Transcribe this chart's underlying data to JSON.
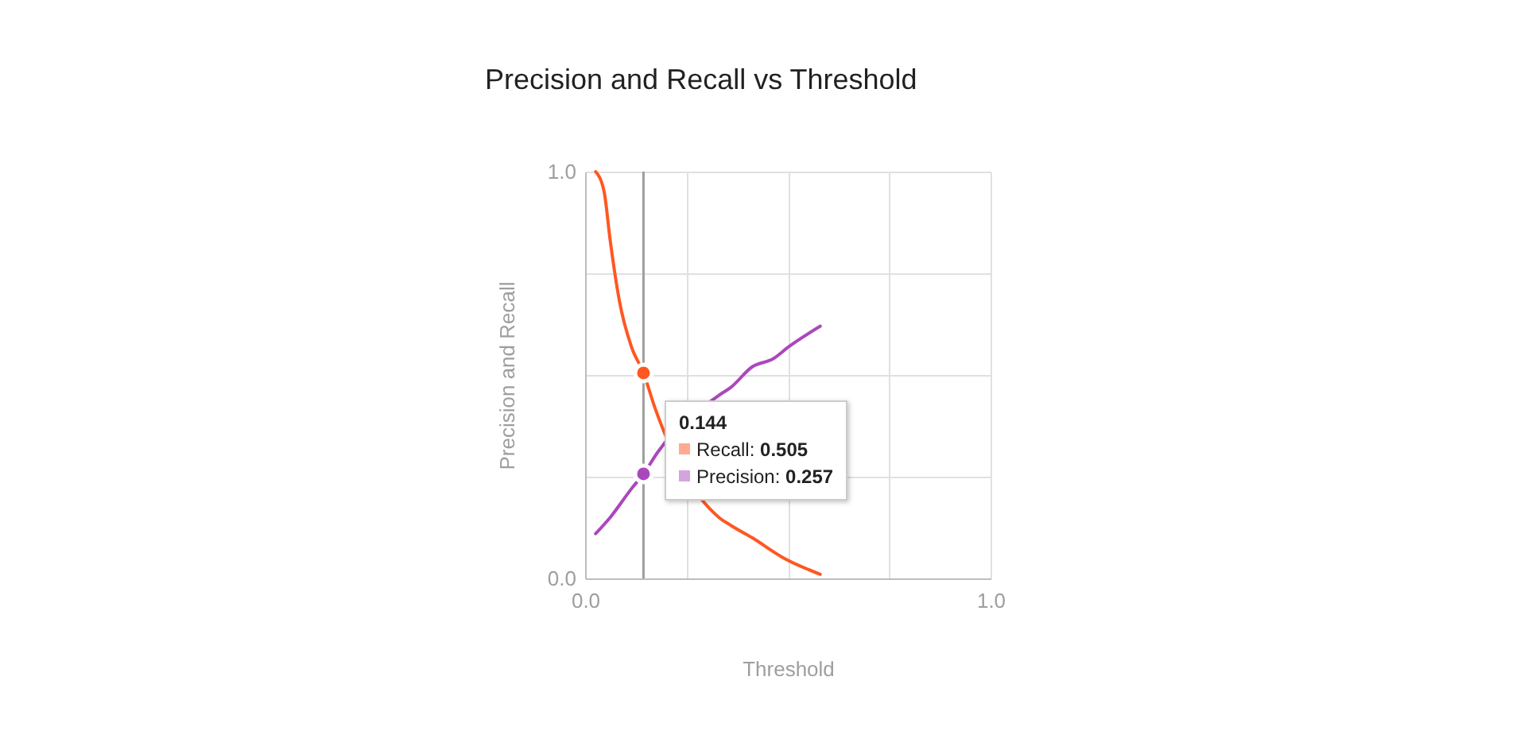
{
  "chart_data": {
    "type": "line",
    "title": "Precision and Recall vs Threshold",
    "xlabel": "Threshold",
    "ylabel": "Precision and Recall",
    "xlim": [
      0,
      1
    ],
    "ylim": [
      0,
      1
    ],
    "xticks": [
      {
        "value": 0,
        "label": "0.0"
      },
      {
        "value": 0.25,
        "label": null
      },
      {
        "value": 0.5,
        "label": null
      },
      {
        "value": 0.75,
        "label": null
      },
      {
        "value": 1,
        "label": "1.0"
      }
    ],
    "yticks": [
      {
        "value": 0,
        "label": "0.0"
      },
      {
        "value": 0.25,
        "label": null
      },
      {
        "value": 0.5,
        "label": null
      },
      {
        "value": 0.75,
        "label": null
      },
      {
        "value": 1,
        "label": "1.0"
      }
    ],
    "grid": true,
    "line_style": "solid",
    "series": [
      {
        "color": "#ff5722",
        "marker": "none",
        "x": [
          0.026,
          0.047,
          0.062,
          0.085,
          0.114,
          0.144,
          0.172,
          0.33,
          0.36,
          0.412,
          0.49,
          0.58
        ],
        "values": [
          1.0,
          0.95,
          0.83,
          0.68,
          0.57,
          0.505,
          0.42,
          0.15,
          0.13,
          0.1,
          0.05,
          0.01
        ]
      },
      {
        "color": "#ab47bc",
        "marker": "none",
        "x": [
          0.026,
          0.062,
          0.114,
          0.144,
          0.179,
          0.33,
          0.36,
          0.412,
          0.464,
          0.503,
          0.58
        ],
        "values": [
          0.11,
          0.15,
          0.22,
          0.257,
          0.31,
          0.45,
          0.47,
          0.52,
          0.54,
          0.57,
          0.62
        ]
      },
      {
        "type": "scatter",
        "marker": "circle",
        "color": "#ff5722",
        "x": [
          0.144
        ],
        "values": [
          0.505
        ]
      },
      {
        "type": "scatter",
        "marker": "circle",
        "color": "#ab47bc",
        "x": [
          0.144
        ],
        "values": [
          0.257
        ]
      }
    ],
    "annotations": [
      "Recall: 0.505",
      "Precision: 0.257"
    ],
    "ref_lines": [
      {
        "axis": "x",
        "value": 0.144,
        "label": "0.144",
        "color": "#9e9e9e"
      }
    ]
  }
}
